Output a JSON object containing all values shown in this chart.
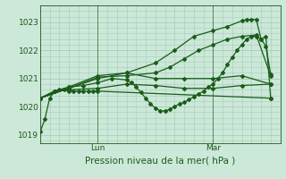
{
  "xlabel": "Pression niveau de la mer( hPa )",
  "ylim": [
    1018.7,
    1023.6
  ],
  "xlim": [
    0,
    50
  ],
  "yticks": [
    1019,
    1020,
    1021,
    1022,
    1023
  ],
  "xtick_positions": [
    12,
    36
  ],
  "xtick_labels": [
    "Lun",
    "Mar"
  ],
  "vline_positions": [
    12,
    36
  ],
  "background_color": "#cce8d8",
  "grid_color": "#a8cdb8",
  "line_color": "#1a5c1a",
  "marker": "D",
  "markersize": 2.0,
  "linewidth": 0.9,
  "series": [
    [
      0,
      1019.1,
      1,
      1019.55,
      2,
      1020.3,
      3,
      1020.55,
      4,
      1020.6,
      5,
      1020.6,
      6,
      1020.55,
      7,
      1020.55,
      8,
      1020.55,
      9,
      1020.55,
      10,
      1020.55,
      11,
      1020.55,
      12,
      1020.55,
      48,
      1020.3
    ],
    [
      0,
      1020.3,
      3,
      1020.55,
      6,
      1020.6,
      12,
      1020.65,
      18,
      1020.8,
      24,
      1020.75,
      30,
      1020.65,
      36,
      1020.65,
      42,
      1020.75,
      48,
      1020.8
    ],
    [
      0,
      1020.3,
      6,
      1020.65,
      12,
      1021.0,
      18,
      1021.2,
      24,
      1021.0,
      30,
      1021.0,
      36,
      1021.0,
      42,
      1021.1,
      48,
      1020.8
    ],
    [
      0,
      1020.3,
      6,
      1020.65,
      12,
      1021.05,
      18,
      1021.1,
      24,
      1021.2,
      27,
      1021.4,
      30,
      1021.7,
      33,
      1022.0,
      36,
      1022.2,
      39,
      1022.4,
      42,
      1022.5,
      45,
      1022.55,
      48,
      1021.1
    ],
    [
      0,
      1020.3,
      6,
      1020.7,
      12,
      1021.1,
      18,
      1021.2,
      24,
      1021.55,
      28,
      1022.0,
      32,
      1022.5,
      36,
      1022.7,
      39,
      1022.85,
      42,
      1023.05,
      43,
      1023.1,
      44,
      1023.1,
      45,
      1023.1,
      46,
      1022.4,
      47,
      1022.15,
      48,
      1021.15
    ],
    [
      0,
      1020.3,
      3,
      1020.55,
      6,
      1020.7,
      9,
      1020.75,
      12,
      1020.85,
      15,
      1021.0,
      18,
      1020.95,
      19,
      1020.85,
      20,
      1020.7,
      21,
      1020.5,
      22,
      1020.3,
      23,
      1020.1,
      24,
      1019.95,
      25,
      1019.85,
      26,
      1019.85,
      27,
      1019.9,
      28,
      1020.0,
      29,
      1020.1,
      30,
      1020.15,
      31,
      1020.25,
      32,
      1020.35,
      33,
      1020.45,
      34,
      1020.55,
      35,
      1020.7,
      36,
      1020.8,
      37,
      1021.0,
      38,
      1021.2,
      39,
      1021.5,
      40,
      1021.75,
      41,
      1022.0,
      42,
      1022.2,
      43,
      1022.4,
      44,
      1022.5,
      45,
      1022.5,
      46,
      1022.4,
      47,
      1022.5,
      48,
      1020.3
    ]
  ]
}
